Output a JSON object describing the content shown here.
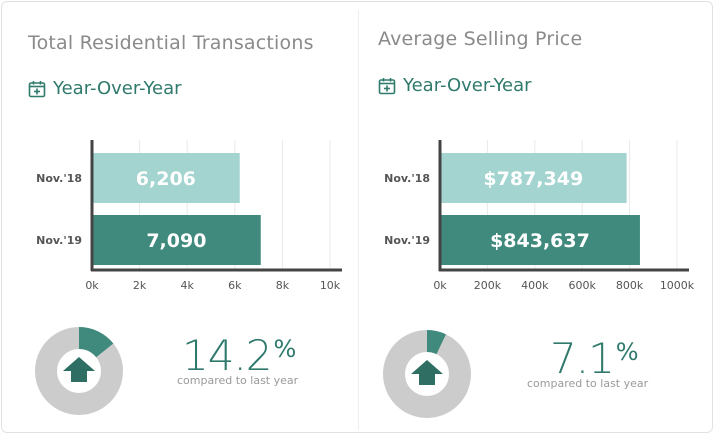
{
  "colors": {
    "bar_prev": "#a3d4cf",
    "bar_curr": "#3f8a7d",
    "accent": "#2f7a6c",
    "donut_bg": "#cccccc",
    "title": "#8a8a8a"
  },
  "panels": [
    {
      "title": "Total Residential Transactions",
      "subtitle": "Year-Over-Year",
      "subtitle_icon": "calendar-plus-icon",
      "change": {
        "value": "14.2",
        "symbol": "%",
        "caption": "compared to last year",
        "fraction": 0.142,
        "direction": "up"
      },
      "chart_data": {
        "type": "bar",
        "orientation": "horizontal",
        "categories": [
          "Nov.'18",
          "Nov.'19"
        ],
        "values": [
          6206,
          7090
        ],
        "value_labels": [
          "6,206",
          "7,090"
        ],
        "xlim": [
          0,
          10000
        ],
        "xticks": [
          0,
          2000,
          4000,
          6000,
          8000,
          10000
        ],
        "xtick_labels": [
          "0k",
          "2k",
          "4k",
          "6k",
          "8k",
          "10k"
        ],
        "grid": true
      }
    },
    {
      "title": "Average Selling Price",
      "subtitle": "Year-Over-Year",
      "subtitle_icon": "calendar-plus-icon",
      "change": {
        "value": "7.1",
        "symbol": "%",
        "caption": "compared to last year",
        "fraction": 0.071,
        "direction": "up"
      },
      "chart_data": {
        "type": "bar",
        "orientation": "horizontal",
        "categories": [
          "Nov.'18",
          "Nov.'19"
        ],
        "values": [
          787349,
          843637
        ],
        "value_labels": [
          "$787,349",
          "$843,637"
        ],
        "xlim": [
          0,
          1000000
        ],
        "xticks": [
          0,
          200000,
          400000,
          600000,
          800000,
          1000000
        ],
        "xtick_labels": [
          "0k",
          "200k",
          "400k",
          "600k",
          "800k",
          "1000k"
        ],
        "grid": true
      }
    }
  ]
}
